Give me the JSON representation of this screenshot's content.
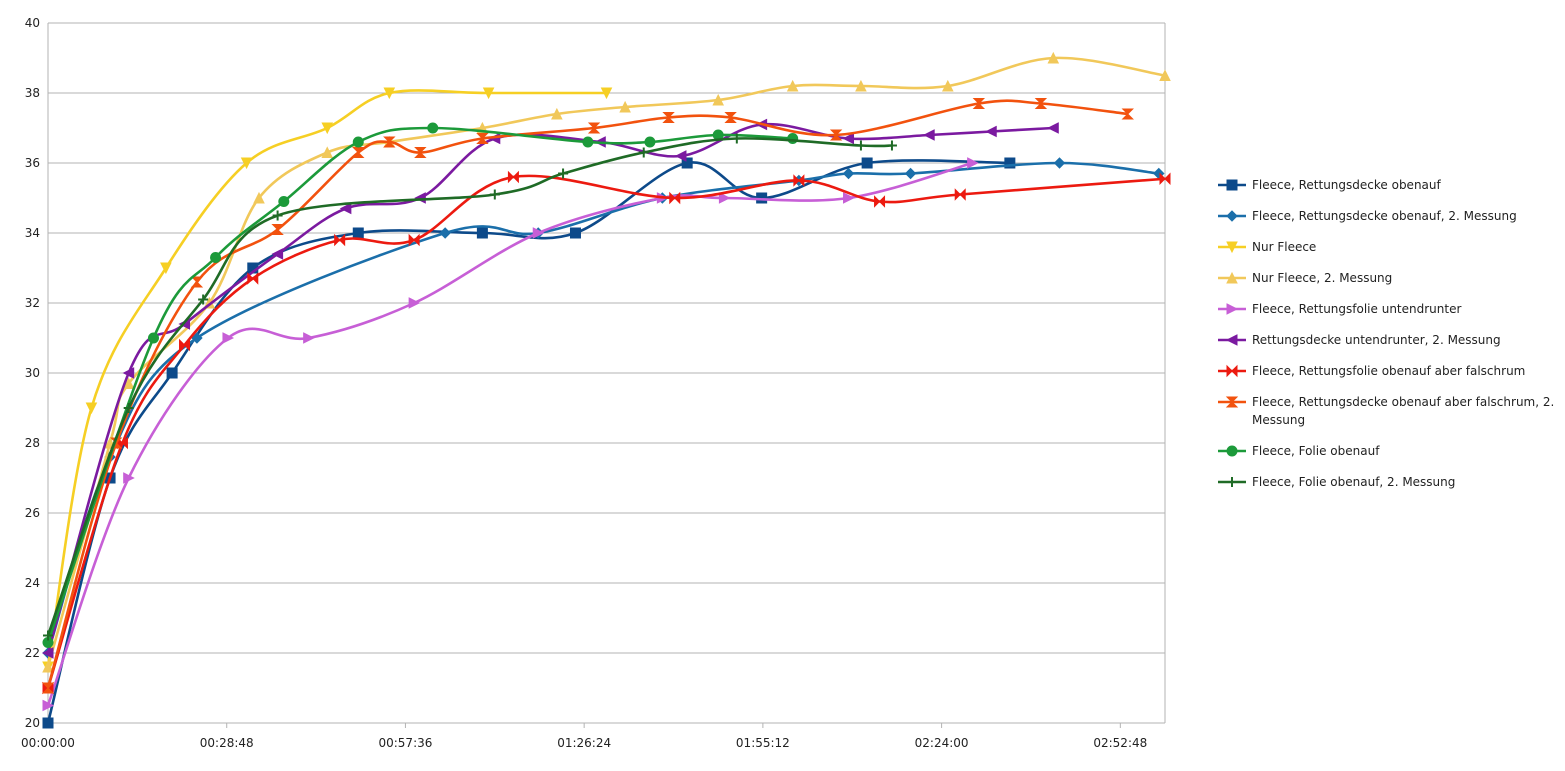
{
  "chart_data": {
    "type": "line",
    "smooth": true,
    "grid": true,
    "legend": "right",
    "xlim": [
      0,
      10800
    ],
    "ylim": [
      20,
      40
    ],
    "xticks": [
      {
        "value": 0,
        "label": "00:00:00"
      },
      {
        "value": 1728,
        "label": "00:28:48"
      },
      {
        "value": 3456,
        "label": "00:57:36"
      },
      {
        "value": 5184,
        "label": "01:26:24"
      },
      {
        "value": 6912,
        "label": "01:55:12"
      },
      {
        "value": 8640,
        "label": "02:24:00"
      },
      {
        "value": 10368,
        "label": "02:52:48"
      }
    ],
    "yticks": [
      20,
      22,
      24,
      26,
      28,
      30,
      32,
      34,
      36,
      38,
      40
    ],
    "series": [
      {
        "name": "Fleece, Rettungsdecke obenauf",
        "color": "#0d4a8a",
        "marker": "square",
        "x": [
          0,
          600,
          1200,
          1980,
          3000,
          4200,
          5100,
          6180,
          6900,
          7920,
          9300
        ],
        "values": [
          20,
          27,
          30,
          33,
          34,
          34,
          34,
          36,
          35,
          36,
          36
        ]
      },
      {
        "name": "Fleece, Rettungsdecke obenauf, 2. Messung",
        "color": "#1b6faa",
        "marker": "diamond",
        "x": [
          0,
          600,
          1440,
          3840,
          4740,
          5940,
          7260,
          7740,
          8340,
          9780,
          10740
        ],
        "values": [
          22,
          27.6,
          31,
          34,
          34,
          35,
          35.5,
          35.7,
          35.7,
          36,
          35.7
        ]
      },
      {
        "name": "Nur Fleece",
        "color": "#f6cf24",
        "marker": "triangle-down",
        "x": [
          0,
          420,
          1140,
          1920,
          2700,
          3300,
          4260,
          5400
        ],
        "values": [
          21.6,
          29,
          33,
          36,
          37,
          38,
          38,
          38
        ]
      },
      {
        "name": "Nur Fleece, 2. Messung",
        "color": "#f1c85a",
        "marker": "triangle-up",
        "x": [
          0,
          600,
          780,
          1560,
          2040,
          2700,
          3300,
          4200,
          4920,
          5580,
          6480,
          7200,
          7860,
          8700,
          9720,
          10800
        ],
        "values": [
          21.6,
          28,
          29.7,
          32,
          35,
          36.3,
          36.6,
          37,
          37.4,
          37.6,
          37.8,
          38.2,
          38.2,
          38.2,
          39,
          38.5
        ]
      },
      {
        "name": "Fleece, Rettungsfolie untendrunter",
        "color": "#c75fd6",
        "marker": "triangle-right",
        "x": [
          0,
          780,
          1740,
          2520,
          3540,
          4740,
          5940,
          6540,
          7740,
          8940
        ],
        "values": [
          20.5,
          27,
          31,
          31,
          32,
          34,
          35,
          35,
          35,
          36
        ]
      },
      {
        "name": "Rettungsdecke untendrunter, 2. Messung",
        "color": "#7b1aa0",
        "marker": "triangle-left",
        "x": [
          0,
          780,
          1320,
          2220,
          2880,
          3600,
          4320,
          5340,
          6120,
          6900,
          7740,
          8520,
          9120,
          9720
        ],
        "values": [
          22,
          30,
          31.4,
          33.4,
          34.7,
          35,
          36.7,
          36.6,
          36.2,
          37.1,
          36.7,
          36.8,
          36.9,
          37
        ]
      },
      {
        "name": "Fleece, Rettungsfolie obenauf aber falschrum",
        "color": "#ec1a10",
        "marker": "bowtie",
        "x": [
          0,
          720,
          1320,
          1980,
          2820,
          3540,
          4500,
          6060,
          7260,
          8040,
          8820,
          10800
        ],
        "values": [
          21,
          28,
          30.8,
          32.7,
          33.8,
          33.8,
          35.6,
          35,
          35.5,
          34.9,
          35.1,
          35.55
        ]
      },
      {
        "name": "Fleece, Rettungsdecke obenauf aber falschrum, 2. Messung",
        "color": "#f2520e",
        "marker": "hourglass",
        "x": [
          0,
          660,
          1440,
          2220,
          3000,
          3300,
          3600,
          4200,
          5280,
          6000,
          6600,
          7620,
          9000,
          9600,
          10440
        ],
        "values": [
          21,
          28,
          32.6,
          34.1,
          36.3,
          36.6,
          36.3,
          36.7,
          37,
          37.3,
          37.3,
          36.8,
          37.7,
          37.7,
          37.4
        ]
      },
      {
        "name": "Fleece, Folie obenauf",
        "color": "#1c9a3a",
        "marker": "circle",
        "x": [
          0,
          1020,
          1620,
          2280,
          3000,
          3720,
          5220,
          5820,
          6480,
          7200
        ],
        "values": [
          22.3,
          31,
          33.3,
          34.9,
          36.6,
          37,
          36.6,
          36.6,
          36.8,
          36.7
        ]
      },
      {
        "name": "Fleece, Folie obenauf, 2. Messung",
        "color": "#1f6b26",
        "marker": "plus",
        "x": [
          0,
          780,
          1500,
          2220,
          4320,
          4980,
          5760,
          6660,
          7860,
          8160
        ],
        "values": [
          22.5,
          29,
          32.1,
          34.5,
          35.1,
          35.7,
          36.3,
          36.7,
          36.5,
          36.5
        ]
      }
    ]
  }
}
